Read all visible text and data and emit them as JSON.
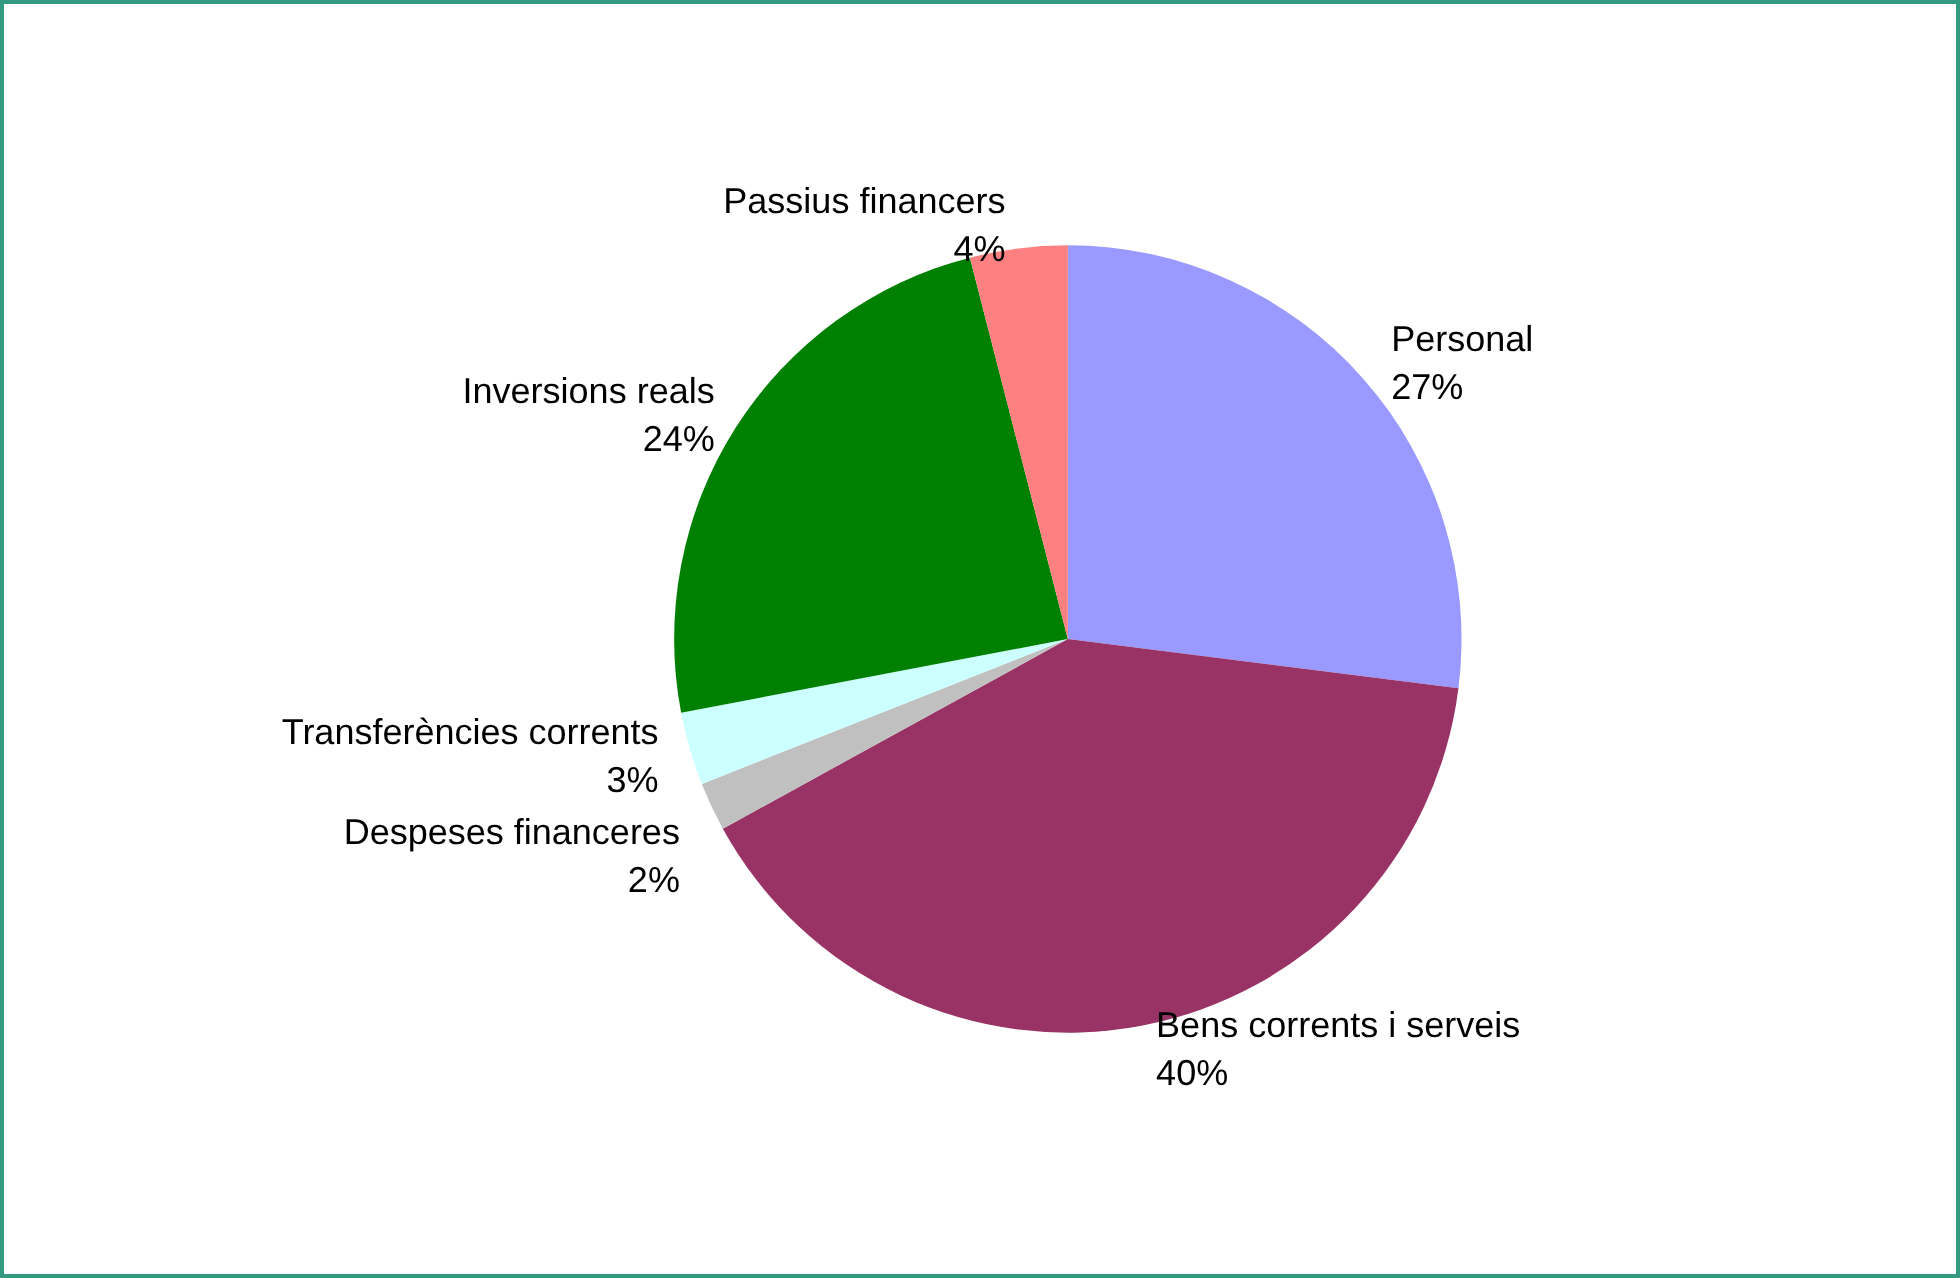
{
  "chart_data": {
    "type": "pie",
    "categories": [
      "Personal",
      "Bens corrents i serveis",
      "Despeses financeres",
      "Transferències corrents",
      "Inversions reals",
      "Passius financers"
    ],
    "values": [
      27,
      40,
      2,
      3,
      24,
      4
    ],
    "value_labels": [
      "27%",
      "40%",
      "2%",
      "3%",
      "24%",
      "4%"
    ],
    "colors": [
      "#9999ff",
      "#993366",
      "#c0c0c0",
      "#ccffff",
      "#008000",
      "#ff8080"
    ],
    "legend": false
  }
}
